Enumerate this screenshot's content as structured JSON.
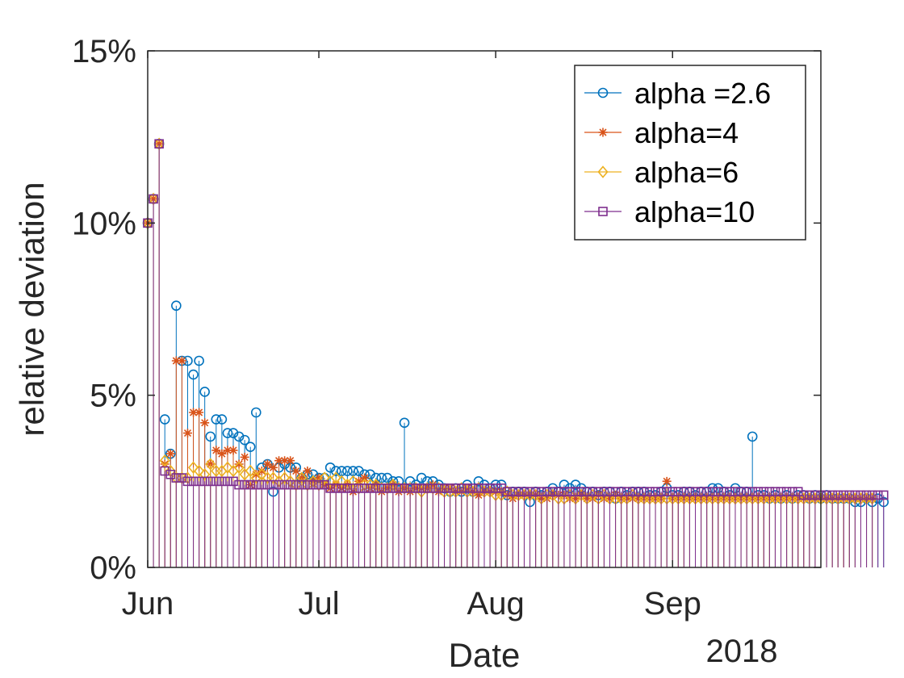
{
  "chart_data": {
    "type": "stem",
    "title": "",
    "xlabel": "Date",
    "ylabel": "relative deviation",
    "x_tick_labels": [
      "Jun",
      "Jul",
      "Aug",
      "Sep"
    ],
    "x_tick_days": [
      0,
      30,
      61,
      92
    ],
    "x_secondary_label": "2018",
    "xlim": [
      0,
      118
    ],
    "ylim": [
      0,
      15
    ],
    "y_tick_values": [
      0,
      5,
      10,
      15
    ],
    "y_tick_labels": [
      "0%",
      "5%",
      "10%",
      "15%"
    ],
    "legend_position": "top-right",
    "series": [
      {
        "name": "alpha =2.6",
        "color": "#0072BD",
        "marker": "circle",
        "values": [
          10.0,
          10.7,
          12.3,
          4.3,
          3.3,
          7.6,
          6.0,
          6.0,
          5.6,
          6.0,
          5.1,
          3.8,
          4.3,
          4.3,
          3.9,
          3.9,
          3.8,
          3.7,
          3.5,
          4.5,
          2.9,
          3.0,
          2.2,
          2.9,
          3.0,
          2.9,
          2.9,
          2.6,
          2.7,
          2.7,
          2.6,
          2.6,
          2.9,
          2.8,
          2.8,
          2.8,
          2.8,
          2.8,
          2.7,
          2.7,
          2.6,
          2.6,
          2.6,
          2.5,
          2.5,
          4.2,
          2.5,
          2.4,
          2.6,
          2.5,
          2.5,
          2.4,
          2.3,
          2.2,
          2.3,
          2.2,
          2.4,
          2.2,
          2.5,
          2.4,
          2.3,
          2.4,
          2.4,
          2.1,
          2.2,
          2.2,
          2.2,
          1.9,
          2.2,
          2.1,
          2.2,
          2.3,
          2.2,
          2.4,
          2.3,
          2.4,
          2.3,
          2.2,
          2.2,
          2.1,
          2.2,
          2.2,
          2.0,
          2.2,
          2.1,
          2.2,
          2.2,
          2.2,
          2.1,
          2.1,
          2.2,
          2.3,
          2.1,
          2.1,
          2.2,
          2.2,
          2.1,
          2.2,
          2.2,
          2.3,
          2.3,
          2.2,
          2.1,
          2.3,
          2.2,
          2.2,
          3.8,
          2.1,
          2.1,
          2.0,
          2.1,
          2.0,
          2.1,
          2.0,
          2.1,
          2.1,
          2.0,
          2.1,
          2.0,
          2.1,
          2.0,
          2.0,
          2.0,
          2.0,
          1.9,
          1.9,
          2.0,
          1.9,
          2.0,
          1.9
        ]
      },
      {
        "name": "alpha=4",
        "color": "#D95319",
        "marker": "asterisk",
        "values": [
          10.0,
          10.7,
          12.3,
          3.0,
          3.3,
          6.0,
          6.0,
          3.9,
          4.5,
          4.5,
          4.2,
          3.0,
          3.4,
          3.3,
          3.4,
          3.4,
          3.0,
          3.2,
          2.4,
          2.7,
          2.8,
          3.0,
          2.9,
          3.1,
          3.1,
          3.1,
          2.8,
          2.6,
          2.8,
          2.5,
          2.6,
          2.4,
          2.3,
          2.4,
          2.3,
          2.4,
          2.2,
          2.5,
          2.6,
          2.3,
          2.4,
          2.2,
          2.3,
          2.4,
          2.2,
          2.3,
          2.2,
          2.3,
          2.3,
          2.3,
          2.4,
          2.2,
          2.3,
          2.3,
          2.2,
          2.2,
          2.3,
          2.2,
          2.1,
          2.2,
          2.2,
          2.2,
          2.2,
          2.1,
          2.0,
          2.1,
          2.1,
          2.1,
          2.1,
          2.0,
          2.0,
          2.1,
          2.1,
          2.1,
          2.0,
          2.0,
          2.1,
          2.0,
          2.0,
          2.1,
          2.0,
          2.0,
          2.1,
          2.0,
          2.0,
          2.0,
          2.0,
          2.0,
          2.0,
          2.0,
          2.0,
          2.5,
          2.0,
          2.0,
          2.0,
          2.0,
          2.0,
          2.0,
          2.0,
          2.0,
          2.0,
          2.0,
          2.0,
          2.0,
          2.0,
          2.0,
          2.0,
          2.0,
          2.0,
          2.0,
          2.0,
          2.0,
          2.0,
          2.0,
          2.0,
          2.0,
          2.0,
          2.0,
          2.0,
          2.0,
          2.0,
          2.0,
          2.0,
          2.0,
          2.0,
          2.0,
          2.0,
          2.0
        ]
      },
      {
        "name": "alpha=6",
        "color": "#EDB120",
        "marker": "diamond",
        "values": [
          10.0,
          10.7,
          12.3,
          3.1,
          2.8,
          2.6,
          2.6,
          2.6,
          2.9,
          2.8,
          2.7,
          3.0,
          2.8,
          2.8,
          2.9,
          2.8,
          2.9,
          2.7,
          2.8,
          2.6,
          2.7,
          2.6,
          2.6,
          2.5,
          2.6,
          2.5,
          2.4,
          2.6,
          2.4,
          2.5,
          2.4,
          2.6,
          2.5,
          2.6,
          2.5,
          2.4,
          2.5,
          2.3,
          2.4,
          2.4,
          2.4,
          2.3,
          2.3,
          2.4,
          2.3,
          2.3,
          2.3,
          2.3,
          2.2,
          2.3,
          2.3,
          2.3,
          2.2,
          2.2,
          2.2,
          2.3,
          2.2,
          2.2,
          2.3,
          2.2,
          2.2,
          2.1,
          2.1,
          2.2,
          2.1,
          2.1,
          2.1,
          2.1,
          2.1,
          2.0,
          2.1,
          2.1,
          2.0,
          2.0,
          2.1,
          2.0,
          2.1,
          2.0,
          2.1,
          2.0,
          2.1,
          2.0,
          2.0,
          2.0,
          2.0,
          2.1,
          2.0,
          2.0,
          2.0,
          2.0,
          2.0,
          2.0,
          2.0,
          2.0,
          2.0,
          2.0,
          2.0,
          2.0,
          2.0,
          2.0,
          2.0,
          2.0,
          2.0,
          2.0,
          2.0,
          2.0,
          2.0,
          2.0,
          2.0,
          2.0,
          2.0,
          2.0,
          2.0,
          2.0,
          2.0,
          2.0,
          2.0,
          2.0,
          2.0,
          2.0,
          2.0,
          2.0,
          2.0,
          2.0,
          2.0,
          2.0,
          2.0,
          2.0
        ]
      },
      {
        "name": "alpha=10",
        "color": "#7E2F8E",
        "marker": "square",
        "values": [
          10.0,
          10.7,
          12.3,
          2.8,
          2.7,
          2.6,
          2.6,
          2.5,
          2.5,
          2.5,
          2.5,
          2.5,
          2.5,
          2.5,
          2.5,
          2.5,
          2.4,
          2.4,
          2.4,
          2.4,
          2.4,
          2.4,
          2.4,
          2.4,
          2.4,
          2.4,
          2.4,
          2.4,
          2.4,
          2.4,
          2.4,
          2.4,
          2.3,
          2.3,
          2.3,
          2.3,
          2.3,
          2.3,
          2.3,
          2.3,
          2.3,
          2.3,
          2.3,
          2.3,
          2.3,
          2.3,
          2.3,
          2.3,
          2.3,
          2.3,
          2.3,
          2.3,
          2.3,
          2.3,
          2.3,
          2.3,
          2.3,
          2.3,
          2.3,
          2.3,
          2.3,
          2.3,
          2.3,
          2.2,
          2.2,
          2.2,
          2.2,
          2.2,
          2.2,
          2.2,
          2.2,
          2.2,
          2.2,
          2.2,
          2.2,
          2.2,
          2.2,
          2.2,
          2.2,
          2.2,
          2.2,
          2.2,
          2.2,
          2.2,
          2.2,
          2.2,
          2.2,
          2.2,
          2.2,
          2.2,
          2.2,
          2.2,
          2.2,
          2.2,
          2.2,
          2.2,
          2.2,
          2.2,
          2.2,
          2.2,
          2.2,
          2.2,
          2.2,
          2.2,
          2.2,
          2.2,
          2.2,
          2.2,
          2.2,
          2.2,
          2.2,
          2.2,
          2.2,
          2.2,
          2.2,
          2.1,
          2.1,
          2.1,
          2.1,
          2.1,
          2.1,
          2.1,
          2.1,
          2.1,
          2.1,
          2.1,
          2.1,
          2.1,
          2.1,
          2.1
        ]
      }
    ]
  }
}
